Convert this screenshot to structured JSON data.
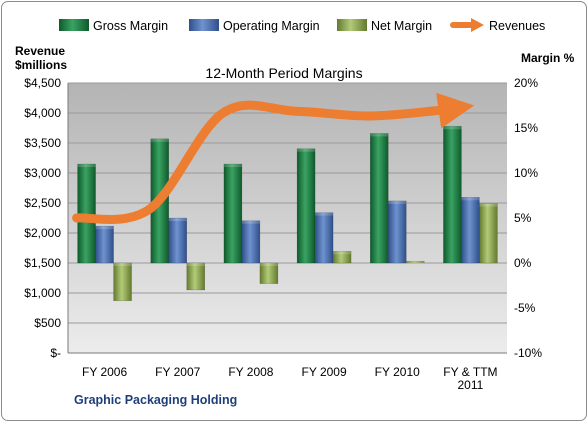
{
  "chart_data": {
    "type": "bar",
    "title": "12-Month Period Margins",
    "subtitle": "Graphic Packaging Holding",
    "y_left_label": [
      "Revenue",
      "$millions"
    ],
    "y_right_label": "Margin %",
    "categories": [
      [
        "FY 2006"
      ],
      [
        "FY 2007"
      ],
      [
        "FY 2008"
      ],
      [
        "FY 2009"
      ],
      [
        "FY 2010"
      ],
      [
        "FY & TTM",
        "2011"
      ]
    ],
    "y_left_ticks": [
      "$4,500",
      "$4,000",
      "$3,500",
      "$3,000",
      "$2,500",
      "$2,000",
      "$1,500",
      "$1,000",
      "$500",
      "$-"
    ],
    "y_right_ticks": [
      "20%",
      "15%",
      "10%",
      "5%",
      "0%",
      "-5%",
      "-10%"
    ],
    "y_left_range": [
      0,
      4500
    ],
    "y_right_range": [
      -10,
      20
    ],
    "grid": true,
    "legend_position": "top",
    "series": [
      {
        "name": "Gross Margin",
        "axis": "right",
        "kind": "bar",
        "color": "#1f7a45",
        "values": [
          11.0,
          13.8,
          11.0,
          12.7,
          14.4,
          15.2
        ]
      },
      {
        "name": "Operating Margin",
        "axis": "right",
        "kind": "bar",
        "color": "#4a6fb0",
        "values": [
          4.1,
          5.0,
          4.7,
          5.6,
          6.9,
          7.3
        ]
      },
      {
        "name": "Net Margin",
        "axis": "right",
        "kind": "bar",
        "color": "#8faa4f",
        "values": [
          -4.2,
          -3.0,
          -2.3,
          1.3,
          0.2,
          6.6
        ]
      },
      {
        "name": "Revenues",
        "axis": "left",
        "kind": "line",
        "color": "#ed7d31",
        "values": [
          2250,
          2400,
          4000,
          4030,
          3950,
          4050
        ]
      }
    ]
  }
}
